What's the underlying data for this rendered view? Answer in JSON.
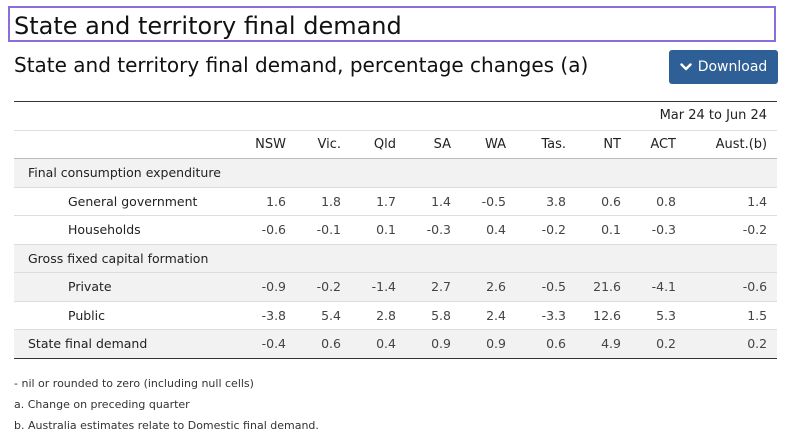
{
  "section_title": "State and territory final demand",
  "table_title": "State and territory final demand, percentage changes (a)",
  "download_label": "Download",
  "download_icon": "chevron-down-icon",
  "period_label": "Mar 24 to Jun 24",
  "columns": [
    "NSW",
    "Vic.",
    "Qld",
    "SA",
    "WA",
    "Tas.",
    "NT",
    "ACT",
    "Aust.(b)"
  ],
  "groups": {
    "consumption": "Final consumption expenditure",
    "gfcf": "Gross fixed capital formation"
  },
  "rows": {
    "general_government": {
      "label": "General government",
      "values": [
        "1.6",
        "1.8",
        "1.7",
        "1.4",
        "-0.5",
        "3.8",
        "0.6",
        "0.8",
        "1.4"
      ]
    },
    "households": {
      "label": "Households",
      "values": [
        "-0.6",
        "-0.1",
        "0.1",
        "-0.3",
        "0.4",
        "-0.2",
        "0.1",
        "-0.3",
        "-0.2"
      ]
    },
    "private": {
      "label": "Private",
      "values": [
        "-0.9",
        "-0.2",
        "-1.4",
        "2.7",
        "2.6",
        "-0.5",
        "21.6",
        "-4.1",
        "-0.6"
      ]
    },
    "public": {
      "label": "Public",
      "values": [
        "-3.8",
        "5.4",
        "2.8",
        "5.8",
        "2.4",
        "-3.3",
        "12.6",
        "5.3",
        "1.5"
      ]
    },
    "state_final_demand": {
      "label": "State final demand",
      "values": [
        "-0.4",
        "0.6",
        "0.4",
        "0.9",
        "0.9",
        "0.6",
        "4.9",
        "0.2",
        "0.2"
      ]
    }
  },
  "footnotes": [
    "- nil or rounded to zero (including null cells)",
    "a. Change on preceding quarter",
    "b. Australia estimates relate to Domestic final demand."
  ],
  "colors": {
    "button_bg": "#2e5f96",
    "title_border": "#8b6fd6",
    "shaded_row": "#f2f2f2"
  }
}
